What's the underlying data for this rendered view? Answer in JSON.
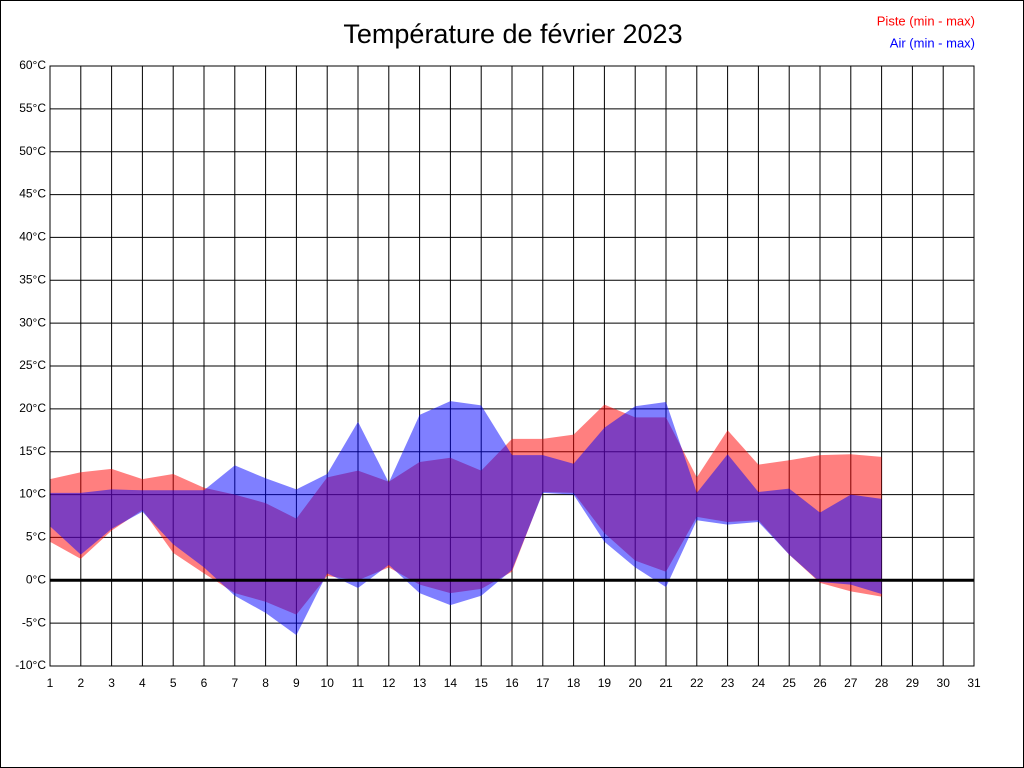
{
  "chart_data": {
    "type": "range-area",
    "title": "Température de février 2023",
    "x": [
      1,
      2,
      3,
      4,
      5,
      6,
      7,
      8,
      9,
      10,
      11,
      12,
      13,
      14,
      15,
      16,
      17,
      18,
      19,
      20,
      21,
      22,
      23,
      24,
      25,
      26,
      27,
      28
    ],
    "xlim": [
      1,
      31
    ],
    "xticks": [
      1,
      2,
      3,
      4,
      5,
      6,
      7,
      8,
      9,
      10,
      11,
      12,
      13,
      14,
      15,
      16,
      17,
      18,
      19,
      20,
      21,
      22,
      23,
      24,
      25,
      26,
      27,
      28,
      29,
      30,
      31
    ],
    "ylim": [
      -10,
      60
    ],
    "yticks": [
      {
        "value": -10,
        "label": "-10°C"
      },
      {
        "value": -5,
        "label": "-5°C"
      },
      {
        "value": 0,
        "label": "0°C"
      },
      {
        "value": 5,
        "label": "5°C"
      },
      {
        "value": 10,
        "label": "10°C"
      },
      {
        "value": 15,
        "label": "15°C"
      },
      {
        "value": 20,
        "label": "20°C"
      },
      {
        "value": 25,
        "label": "25°C"
      },
      {
        "value": 30,
        "label": "30°C"
      },
      {
        "value": 35,
        "label": "35°C"
      },
      {
        "value": 40,
        "label": "40°C"
      },
      {
        "value": 45,
        "label": "45°C"
      },
      {
        "value": 50,
        "label": "50°C"
      },
      {
        "value": 55,
        "label": "55°C"
      },
      {
        "value": 60,
        "label": "60°C"
      }
    ],
    "grid": true,
    "reference_line": 0,
    "legend": "top-right",
    "series": [
      {
        "name": "Piste (min - max)",
        "color": "#ff0000",
        "max": [
          11.8,
          12.6,
          13.0,
          11.8,
          12.4,
          10.8,
          10.0,
          9.0,
          7.2,
          12.0,
          12.8,
          11.5,
          13.8,
          14.3,
          12.8,
          16.5,
          16.5,
          17.0,
          20.5,
          19.0,
          19.0,
          12.0,
          17.5,
          13.5,
          14.0,
          14.6,
          14.7,
          14.4
        ],
        "min": [
          4.5,
          2.5,
          5.8,
          8.2,
          3.2,
          0.8,
          -1.5,
          -2.5,
          -4.0,
          0.5,
          0.0,
          1.5,
          -0.5,
          -1.5,
          -1.0,
          1.0,
          10.3,
          10.2,
          5.5,
          2.3,
          1.0,
          7.4,
          6.8,
          7.0,
          3.0,
          -0.3,
          -1.3,
          -1.9
        ]
      },
      {
        "name": "Air (min - max)",
        "color": "#0000ff",
        "max": [
          10.2,
          10.2,
          10.6,
          10.5,
          10.5,
          10.5,
          13.4,
          11.9,
          10.6,
          12.4,
          18.5,
          11.4,
          19.3,
          20.9,
          20.4,
          14.6,
          14.6,
          13.6,
          17.8,
          20.3,
          20.8,
          10.2,
          14.7,
          10.3,
          10.7,
          7.9,
          10.0,
          9.5
        ],
        "min": [
          6.3,
          3.0,
          6.0,
          8.0,
          4.2,
          1.5,
          -1.8,
          -3.8,
          -6.4,
          0.8,
          -0.9,
          1.8,
          -1.5,
          -2.9,
          -1.8,
          1.2,
          10.2,
          10.0,
          4.5,
          1.5,
          -0.8,
          7.0,
          6.5,
          6.8,
          3.0,
          -0.2,
          -0.5,
          -1.6
        ]
      }
    ]
  }
}
